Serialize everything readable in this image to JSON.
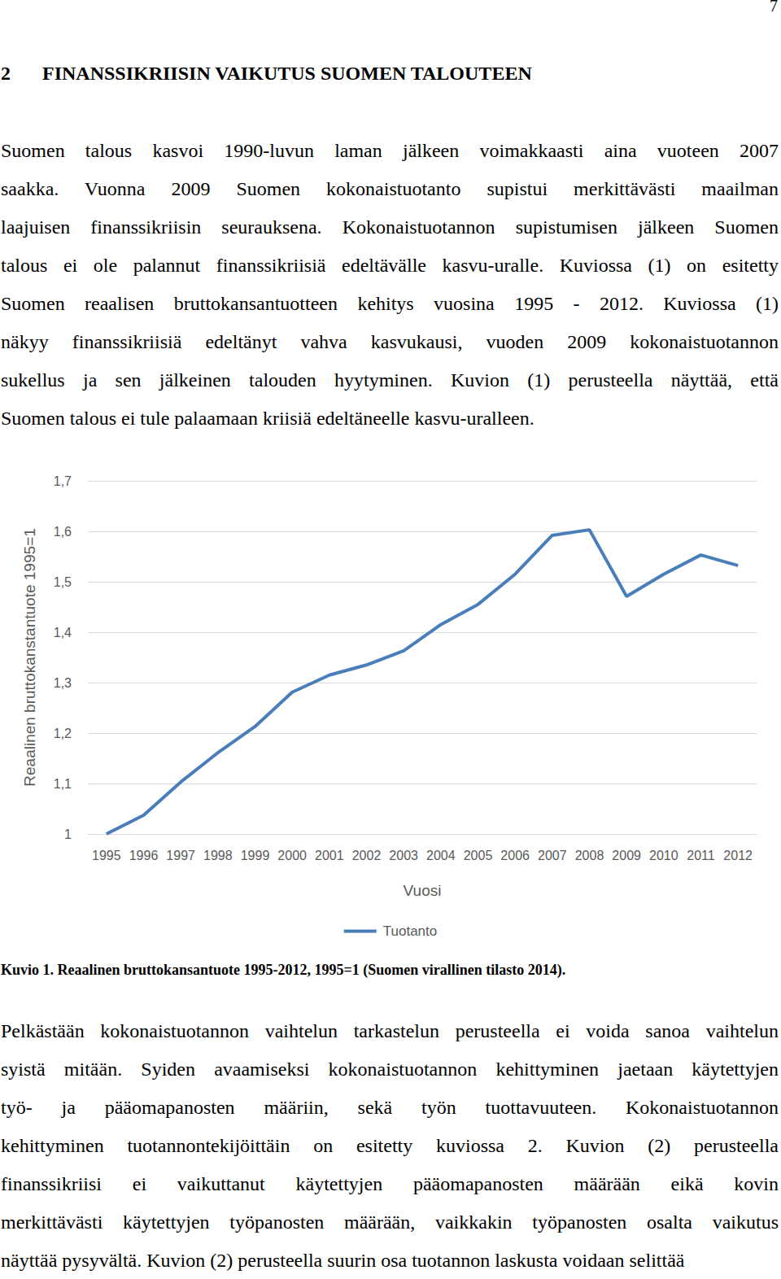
{
  "page_number": "7",
  "heading": {
    "number": "2",
    "title": "FINANSSIKRIISIN VAIKUTUS SUOMEN TALOUTEEN"
  },
  "text_before": [
    "Suomen talous kasvoi 1990-luvun laman jälkeen voimakkaasti aina vuoteen 2007",
    "saakka. Vuonna 2009 Suomen kokonaistuotanto supistui merkittävästi maailman",
    "laajuisen finanssikriisin seurauksena. Kokonaistuotannon supistumisen jälkeen Suomen",
    "talous ei ole palannut finanssikriisiä edeltävälle kasvu-uralle. Kuviossa (1) on esitetty",
    "Suomen reaalisen bruttokansantuotteen kehitys vuosina 1995 - 2012. Kuviossa (1)",
    "näkyy finanssikriisiä edeltänyt vahva kasvukausi, vuoden 2009 kokonaistuotannon",
    "sukellus ja sen jälkeinen talouden hyytyminen. Kuvion (1) perusteella näyttää, että",
    "Suomen talous ei tule palaamaan kriisiä edeltäneelle kasvu-uralleen."
  ],
  "figure": {
    "caption": "Kuvio 1. Reaalinen bruttokansantuote 1995-2012, 1995=1 (Suomen virallinen tilasto 2014)."
  },
  "text_after": [
    "Pelkästään kokonaistuotannon vaihtelun tarkastelun perusteella ei voida sanoa vaihtelun",
    "syistä mitään. Syiden avaamiseksi kokonaistuotannon kehittyminen jaetaan käytettyjen",
    "työ- ja pääomapanosten määriin, sekä työn tuottavuuteen. Kokonaistuotannon",
    "kehittyminen tuotannontekijöittäin on esitetty kuviossa 2. Kuvion (2) perusteella",
    "finanssikriisi ei vaikuttanut käytettyjen pääomapanosten määrään eikä kovin",
    "merkittävästi käytettyjen työpanosten määrään, vaikkakin työpanosten osalta vaikutus",
    "näyttää pysyvältä. Kuvion (2) perusteella suurin osa tuotannon laskusta voidaan selittää"
  ],
  "chart_data": {
    "type": "line",
    "x_label": "Vuosi",
    "y_label": "Reaalinen bruttokanstantuote 1995=1",
    "categories": [
      "1995",
      "1996",
      "1997",
      "1998",
      "1999",
      "2000",
      "2001",
      "2002",
      "2003",
      "2004",
      "2005",
      "2006",
      "2007",
      "2008",
      "2009",
      "2010",
      "2011",
      "2012"
    ],
    "series": [
      {
        "name": "Tuotanto",
        "color": "#4a7ebb",
        "values": [
          1.0,
          1.037,
          1.103,
          1.161,
          1.213,
          1.281,
          1.315,
          1.335,
          1.363,
          1.415,
          1.455,
          1.515,
          1.592,
          1.603,
          1.471,
          1.515,
          1.553,
          1.532
        ]
      }
    ],
    "ylim": [
      1,
      1.7
    ],
    "yticks": [
      1,
      {
        "value": 1.1,
        "label": "1,1"
      },
      {
        "value": 1.2,
        "label": "1,2"
      },
      {
        "value": 1.3,
        "label": "1,3"
      },
      {
        "value": 1.4,
        "label": "1,4"
      },
      {
        "value": 1.5,
        "label": "1,5"
      },
      {
        "value": 1.6,
        "label": "1,6"
      },
      {
        "value": 1.7,
        "label": "1,7"
      }
    ],
    "grid": true,
    "legend": "bottom"
  }
}
